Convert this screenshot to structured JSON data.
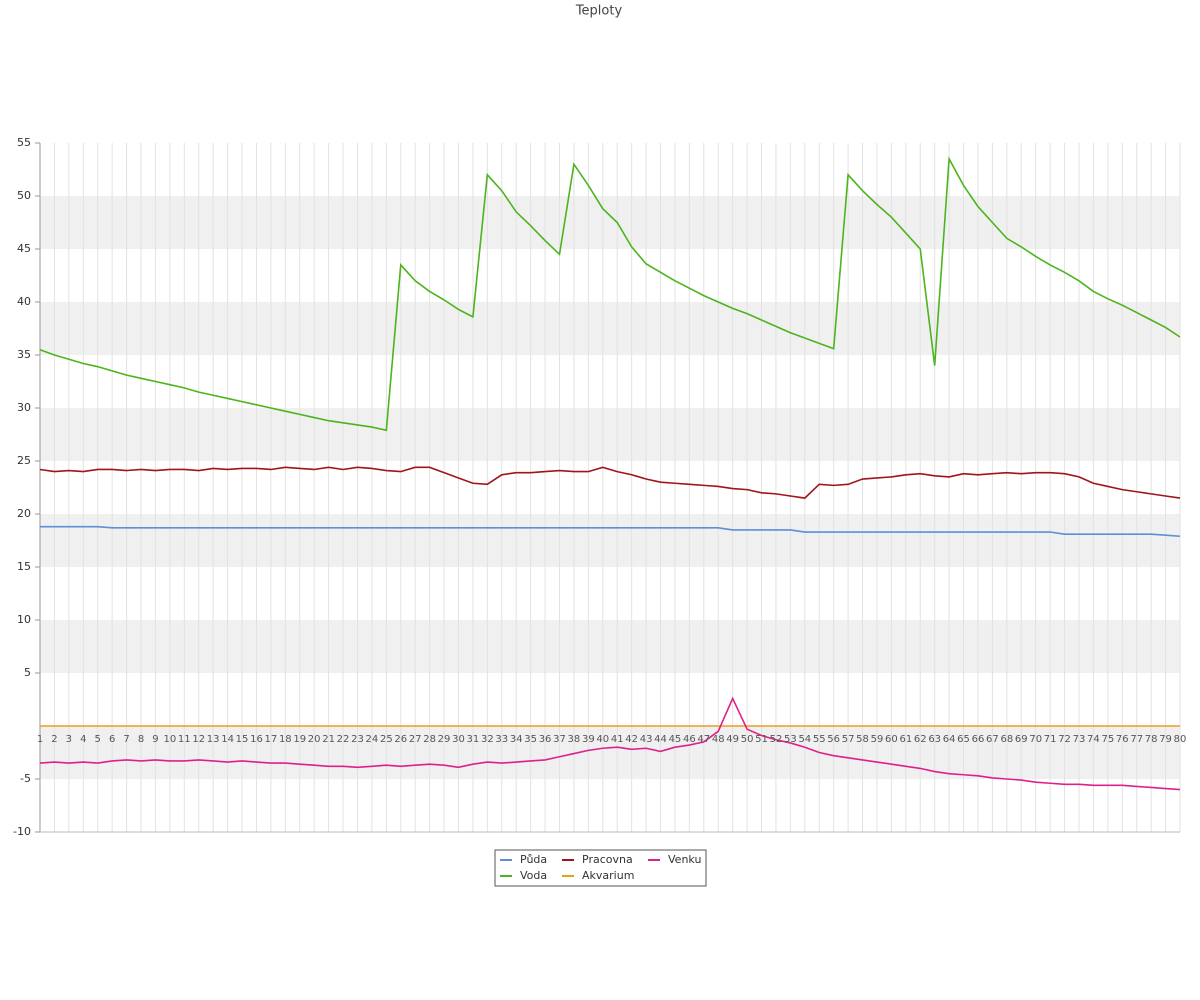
{
  "chart_data": {
    "type": "line",
    "title": "Teploty",
    "categories": [
      1,
      2,
      3,
      4,
      5,
      6,
      7,
      8,
      9,
      10,
      11,
      12,
      13,
      14,
      15,
      16,
      17,
      18,
      19,
      20,
      21,
      22,
      23,
      24,
      25,
      26,
      27,
      28,
      29,
      30,
      31,
      32,
      33,
      34,
      35,
      36,
      37,
      38,
      39,
      40,
      41,
      42,
      43,
      44,
      45,
      46,
      47,
      48,
      49,
      50,
      51,
      52,
      53,
      54,
      55,
      56,
      57,
      58,
      59,
      60,
      61,
      62,
      63,
      64,
      65,
      66,
      67,
      68,
      69,
      70,
      71,
      72,
      73,
      74,
      75,
      76,
      77,
      78,
      79,
      80
    ],
    "ylim": [
      -10,
      55
    ],
    "yticks": [
      -10,
      -5,
      5,
      10,
      15,
      20,
      25,
      30,
      35,
      40,
      45,
      50,
      55
    ],
    "grid": true,
    "legend": "bottom",
    "series": [
      {
        "name": "Půda",
        "color": "#5b8fd8",
        "values": [
          18.8,
          18.8,
          18.8,
          18.8,
          18.8,
          18.7,
          18.7,
          18.7,
          18.7,
          18.7,
          18.7,
          18.7,
          18.7,
          18.7,
          18.7,
          18.7,
          18.7,
          18.7,
          18.7,
          18.7,
          18.7,
          18.7,
          18.7,
          18.7,
          18.7,
          18.7,
          18.7,
          18.7,
          18.7,
          18.7,
          18.7,
          18.7,
          18.7,
          18.7,
          18.7,
          18.7,
          18.7,
          18.7,
          18.7,
          18.7,
          18.7,
          18.7,
          18.7,
          18.7,
          18.7,
          18.7,
          18.7,
          18.7,
          18.5,
          18.5,
          18.5,
          18.5,
          18.5,
          18.3,
          18.3,
          18.3,
          18.3,
          18.3,
          18.3,
          18.3,
          18.3,
          18.3,
          18.3,
          18.3,
          18.3,
          18.3,
          18.3,
          18.3,
          18.3,
          18.3,
          18.3,
          18.1,
          18.1,
          18.1,
          18.1,
          18.1,
          18.1,
          18.1,
          18.0,
          17.9
        ]
      },
      {
        "name": "Voda",
        "color": "#4cb41c",
        "values": [
          35.5,
          35.0,
          34.6,
          34.2,
          33.9,
          33.5,
          33.1,
          32.8,
          32.5,
          32.2,
          31.9,
          31.5,
          31.2,
          30.9,
          30.6,
          30.3,
          30.0,
          29.7,
          29.4,
          29.1,
          28.8,
          28.6,
          28.4,
          28.2,
          27.9,
          43.5,
          42.0,
          41.0,
          40.2,
          39.3,
          38.6,
          52.0,
          50.5,
          48.5,
          47.2,
          45.8,
          44.5,
          53.0,
          51.0,
          48.8,
          47.5,
          45.2,
          43.6,
          42.8,
          42.0,
          41.3,
          40.6,
          40.0,
          39.4,
          38.9,
          38.3,
          37.7,
          37.1,
          36.6,
          36.1,
          35.6,
          52.0,
          50.5,
          49.2,
          48.0,
          46.5,
          45.0,
          34.0,
          53.5,
          51.0,
          49.0,
          47.5,
          46.0,
          45.2,
          44.3,
          43.5,
          42.8,
          42.0,
          41.0,
          40.3,
          39.7,
          39.0,
          38.3,
          37.6,
          36.7
        ]
      },
      {
        "name": "Pracovna",
        "color": "#a0141c",
        "values": [
          24.2,
          24.0,
          24.1,
          24.0,
          24.2,
          24.2,
          24.1,
          24.2,
          24.1,
          24.2,
          24.2,
          24.1,
          24.3,
          24.2,
          24.3,
          24.3,
          24.2,
          24.4,
          24.3,
          24.2,
          24.4,
          24.2,
          24.4,
          24.3,
          24.1,
          24.0,
          24.4,
          24.4,
          23.9,
          23.4,
          22.9,
          22.8,
          23.7,
          23.9,
          23.9,
          24.0,
          24.1,
          24.0,
          24.0,
          24.4,
          24.0,
          23.7,
          23.3,
          23.0,
          22.9,
          22.8,
          22.7,
          22.6,
          22.4,
          22.3,
          22.0,
          21.9,
          21.7,
          21.5,
          22.8,
          22.7,
          22.8,
          23.3,
          23.4,
          23.5,
          23.7,
          23.8,
          23.6,
          23.5,
          23.8,
          23.7,
          23.8,
          23.9,
          23.8,
          23.9,
          23.9,
          23.8,
          23.5,
          22.9,
          22.6,
          22.3,
          22.1,
          21.9,
          21.7,
          21.5
        ]
      },
      {
        "name": "Akvarium",
        "color": "#e8a020",
        "values": [
          0,
          0,
          0,
          0,
          0,
          0,
          0,
          0,
          0,
          0,
          0,
          0,
          0,
          0,
          0,
          0,
          0,
          0,
          0,
          0,
          0,
          0,
          0,
          0,
          0,
          0,
          0,
          0,
          0,
          0,
          0,
          0,
          0,
          0,
          0,
          0,
          0,
          0,
          0,
          0,
          0,
          0,
          0,
          0,
          0,
          0,
          0,
          0,
          0,
          0,
          0,
          0,
          0,
          0,
          0,
          0,
          0,
          0,
          0,
          0,
          0,
          0,
          0,
          0,
          0,
          0,
          0,
          0,
          0,
          0,
          0,
          0,
          0,
          0,
          0,
          0,
          0,
          0,
          0,
          0
        ]
      },
      {
        "name": "Venku",
        "color": "#e0208a",
        "values": [
          -3.5,
          -3.4,
          -3.5,
          -3.4,
          -3.5,
          -3.3,
          -3.2,
          -3.3,
          -3.2,
          -3.3,
          -3.3,
          -3.2,
          -3.3,
          -3.4,
          -3.3,
          -3.4,
          -3.5,
          -3.5,
          -3.6,
          -3.7,
          -3.8,
          -3.8,
          -3.9,
          -3.8,
          -3.7,
          -3.8,
          -3.7,
          -3.6,
          -3.7,
          -3.9,
          -3.6,
          -3.4,
          -3.5,
          -3.4,
          -3.3,
          -3.2,
          -2.9,
          -2.6,
          -2.3,
          -2.1,
          -2.0,
          -2.2,
          -2.1,
          -2.4,
          -2.0,
          -1.8,
          -1.5,
          -0.5,
          2.6,
          -0.3,
          -0.9,
          -1.3,
          -1.6,
          -2.0,
          -2.5,
          -2.8,
          -3.0,
          -3.2,
          -3.4,
          -3.6,
          -3.8,
          -4.0,
          -4.3,
          -4.5,
          -4.6,
          -4.7,
          -4.9,
          -5.0,
          -5.1,
          -5.3,
          -5.4,
          -5.5,
          -5.5,
          -5.6,
          -5.6,
          -5.6,
          -5.7,
          -5.8,
          -5.9,
          -6.0
        ]
      }
    ]
  }
}
